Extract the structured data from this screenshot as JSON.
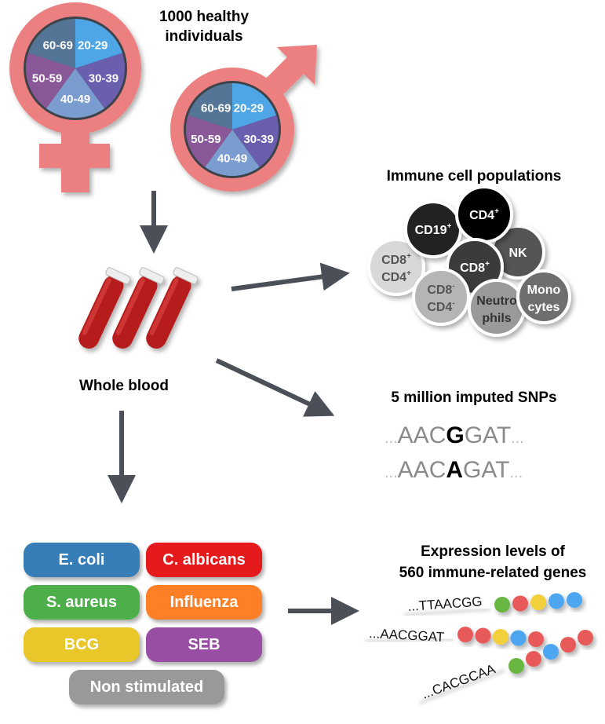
{
  "title": "1000 healthy individuals",
  "title_lines": [
    "1000 healthy",
    "individuals"
  ],
  "age_groups": [
    "20-29",
    "30-39",
    "40-49",
    "50-59",
    "60-69"
  ],
  "age_colors": [
    "#4ea6e6",
    "#6a5eae",
    "#7a9cce",
    "#8a5899",
    "#557597"
  ],
  "symbol_color": "#ec7f7f",
  "arrow_color": "#4b5058",
  "blood_label": "Whole blood",
  "immune": {
    "title": "Immune cell populations",
    "cells": [
      {
        "line1": "CD8",
        "sup1": "+",
        "line2": "CD4",
        "sup2": "+",
        "color": "#d8d8d8",
        "text_color": "#555"
      },
      {
        "line1": "CD19",
        "sup1": "+",
        "color": "#232323",
        "text_color": "#fff"
      },
      {
        "line1": "NK",
        "color": "#555555",
        "text_color": "#fff"
      },
      {
        "line1": "CD4",
        "sup1": "+",
        "color": "#000000",
        "text_color": "#fff"
      },
      {
        "line1": "CD8",
        "sup1": "+",
        "color": "#3a3a3a",
        "text_color": "#fff"
      },
      {
        "line1": "CD8",
        "sup1": "-",
        "line2": "CD4",
        "sup2": "-",
        "color": "#b5b5b5",
        "text_color": "#555"
      },
      {
        "line1": "Neutro",
        "line2": "phils",
        "color": "#9a9a9a",
        "text_color": "#333"
      },
      {
        "line1": "Mono",
        "line2": "cytes",
        "color": "#6e6e6e",
        "text_color": "#fff"
      }
    ]
  },
  "snps": {
    "title": "5 million imputed SNPs",
    "rows": [
      {
        "prefix": "...",
        "left": "AAC",
        "variant": "G",
        "right": "GAT",
        "suffix": "..."
      },
      {
        "prefix": "...",
        "left": "AAC",
        "variant": "A",
        "right": "GAT",
        "suffix": "..."
      }
    ]
  },
  "stimuli": [
    {
      "label": "E. coli",
      "color": "#377eb8"
    },
    {
      "label": "C. albicans",
      "color": "#e41a1c"
    },
    {
      "label": "S. aureus",
      "color": "#4daf4a"
    },
    {
      "label": "Influenza",
      "color": "#ff7f27"
    },
    {
      "label": "BCG",
      "color": "#e9c72a"
    },
    {
      "label": "SEB",
      "color": "#984ea3"
    },
    {
      "label": "Non stimulated",
      "color": "#999999"
    }
  ],
  "expression": {
    "title_lines": [
      "Expression levels of",
      "560 immune-related genes"
    ],
    "rows": [
      {
        "sequence": "...TTAACGG",
        "beads": [
          "#6ab643",
          "#e85a5a",
          "#f2d03b",
          "#4ea6f0",
          "#4ea6f0"
        ]
      },
      {
        "sequence": "...AACGGAT",
        "beads": [
          "#e85a5a",
          "#e85a5a",
          "#f2d03b",
          "#4ea6f0",
          "#e85a5a"
        ]
      },
      {
        "sequence": "...CACGCAA",
        "beads": [
          "#6ab643",
          "#e85a5a",
          "#4ea6f0",
          "#e85a5a",
          "#e85a5a"
        ]
      }
    ]
  }
}
